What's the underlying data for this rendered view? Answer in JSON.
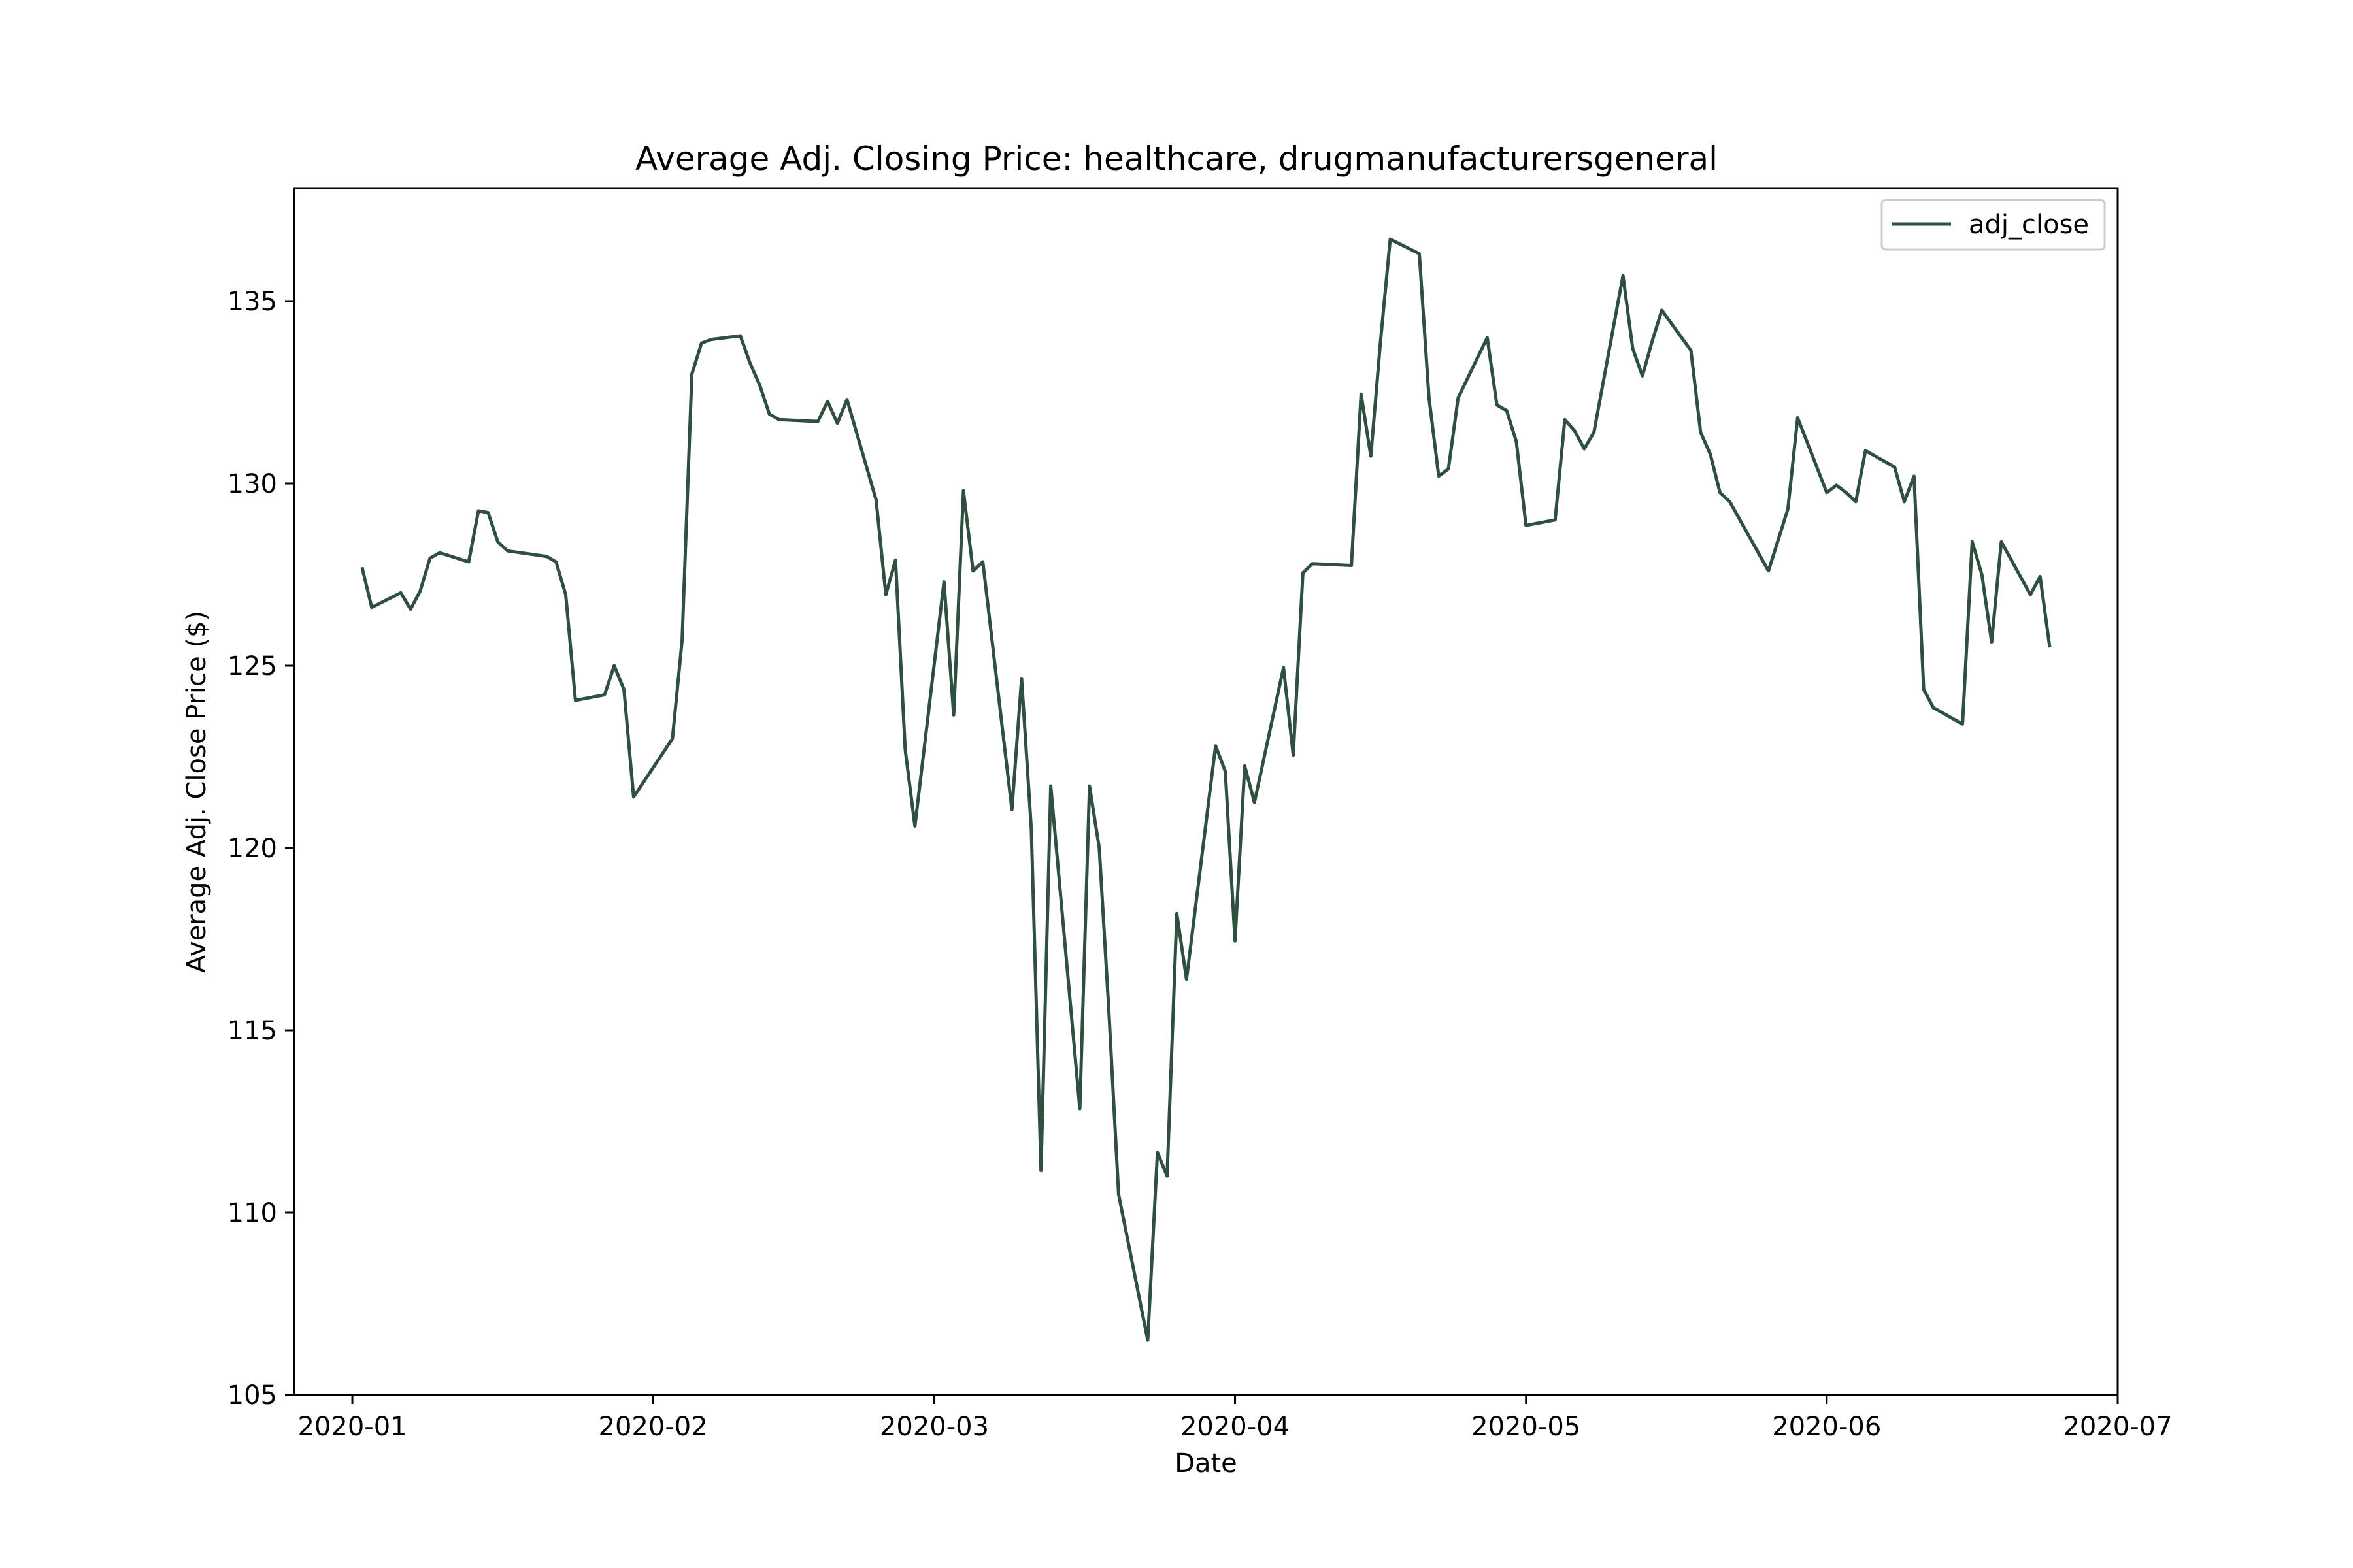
{
  "chart_data": {
    "type": "line",
    "title": "Average Adj. Closing Price: healthcare, drugmanufacturersgeneral",
    "xlabel": "Date",
    "ylabel": "Average Adj. Close Price ($)",
    "xlim": [
      "2019-12-26",
      "2020-07-01"
    ],
    "ylim": [
      105,
      138.1
    ],
    "x_ticks": [
      "2020-01-01",
      "2020-02-01",
      "2020-03-01",
      "2020-04-01",
      "2020-05-01",
      "2020-06-01",
      "2020-07-01"
    ],
    "x_tick_labels": [
      "2020-01",
      "2020-02",
      "2020-03",
      "2020-04",
      "2020-05",
      "2020-06",
      "2020-07"
    ],
    "y_ticks": [
      105,
      110,
      115,
      120,
      125,
      130,
      135
    ],
    "y_tick_labels": [
      "105",
      "110",
      "115",
      "120",
      "125",
      "130",
      "135"
    ],
    "grid": false,
    "legend": {
      "position": "top-right",
      "entries": [
        "adj_close"
      ]
    },
    "series": [
      {
        "name": "adj_close",
        "color": "#2f4f3f",
        "points": [
          [
            "2020-01-02",
            127.7
          ],
          [
            "2020-01-03",
            126.6
          ],
          [
            "2020-01-06",
            127.0
          ],
          [
            "2020-01-07",
            126.55
          ],
          [
            "2020-01-08",
            127.05
          ],
          [
            "2020-01-09",
            127.95
          ],
          [
            "2020-01-10",
            128.1
          ],
          [
            "2020-01-13",
            127.85
          ],
          [
            "2020-01-14",
            129.25
          ],
          [
            "2020-01-15",
            129.2
          ],
          [
            "2020-01-16",
            128.4
          ],
          [
            "2020-01-17",
            128.15
          ],
          [
            "2020-01-21",
            128.0
          ],
          [
            "2020-01-22",
            127.85
          ],
          [
            "2020-01-23",
            126.95
          ],
          [
            "2020-01-24",
            124.05
          ],
          [
            "2020-01-27",
            124.2
          ],
          [
            "2020-01-28",
            125.0
          ],
          [
            "2020-01-29",
            124.35
          ],
          [
            "2020-01-30",
            121.4
          ],
          [
            "2020-02-03",
            123.0
          ],
          [
            "2020-02-04",
            125.7
          ],
          [
            "2020-02-05",
            133.0
          ],
          [
            "2020-02-06",
            133.85
          ],
          [
            "2020-02-07",
            133.95
          ],
          [
            "2020-02-10",
            134.05
          ],
          [
            "2020-02-11",
            133.3
          ],
          [
            "2020-02-12",
            132.7
          ],
          [
            "2020-02-13",
            131.9
          ],
          [
            "2020-02-14",
            131.75
          ],
          [
            "2020-02-18",
            131.7
          ],
          [
            "2020-02-19",
            132.25
          ],
          [
            "2020-02-20",
            131.65
          ],
          [
            "2020-02-21",
            132.3
          ],
          [
            "2020-02-24",
            129.55
          ],
          [
            "2020-02-25",
            126.95
          ],
          [
            "2020-02-26",
            127.9
          ],
          [
            "2020-02-27",
            122.7
          ],
          [
            "2020-02-28",
            120.6
          ],
          [
            "2020-03-02",
            127.3
          ],
          [
            "2020-03-03",
            123.65
          ],
          [
            "2020-03-04",
            129.8
          ],
          [
            "2020-03-05",
            127.6
          ],
          [
            "2020-03-06",
            127.85
          ],
          [
            "2020-03-09",
            121.05
          ],
          [
            "2020-03-10",
            124.65
          ],
          [
            "2020-03-11",
            120.5
          ],
          [
            "2020-03-12",
            111.15
          ],
          [
            "2020-03-13",
            121.7
          ],
          [
            "2020-03-16",
            112.85
          ],
          [
            "2020-03-17",
            121.7
          ],
          [
            "2020-03-18",
            120.0
          ],
          [
            "2020-03-19",
            115.5
          ],
          [
            "2020-03-20",
            110.5
          ],
          [
            "2020-03-23",
            106.5
          ],
          [
            "2020-03-24",
            111.65
          ],
          [
            "2020-03-25",
            111.0
          ],
          [
            "2020-03-26",
            118.2
          ],
          [
            "2020-03-27",
            116.4
          ],
          [
            "2020-03-30",
            122.8
          ],
          [
            "2020-03-31",
            122.1
          ],
          [
            "2020-04-01",
            117.45
          ],
          [
            "2020-04-02",
            122.25
          ],
          [
            "2020-04-03",
            121.25
          ],
          [
            "2020-04-06",
            124.95
          ],
          [
            "2020-04-07",
            122.55
          ],
          [
            "2020-04-08",
            127.55
          ],
          [
            "2020-04-09",
            127.8
          ],
          [
            "2020-04-13",
            127.75
          ],
          [
            "2020-04-14",
            132.45
          ],
          [
            "2020-04-15",
            130.75
          ],
          [
            "2020-04-16",
            133.9
          ],
          [
            "2020-04-17",
            136.7
          ],
          [
            "2020-04-20",
            136.3
          ],
          [
            "2020-04-21",
            132.35
          ],
          [
            "2020-04-22",
            130.2
          ],
          [
            "2020-04-23",
            130.4
          ],
          [
            "2020-04-24",
            132.35
          ],
          [
            "2020-04-27",
            134.0
          ],
          [
            "2020-04-28",
            132.15
          ],
          [
            "2020-04-29",
            132.0
          ],
          [
            "2020-04-30",
            131.15
          ],
          [
            "2020-05-01",
            128.85
          ],
          [
            "2020-05-04",
            129.0
          ],
          [
            "2020-05-05",
            131.75
          ],
          [
            "2020-05-06",
            131.45
          ],
          [
            "2020-05-07",
            130.95
          ],
          [
            "2020-05-08",
            131.4
          ],
          [
            "2020-05-11",
            135.7
          ],
          [
            "2020-05-12",
            133.7
          ],
          [
            "2020-05-13",
            132.95
          ],
          [
            "2020-05-14",
            133.9
          ],
          [
            "2020-05-15",
            134.75
          ],
          [
            "2020-05-18",
            133.65
          ],
          [
            "2020-05-19",
            131.4
          ],
          [
            "2020-05-20",
            130.8
          ],
          [
            "2020-05-21",
            129.75
          ],
          [
            "2020-05-22",
            129.5
          ],
          [
            "2020-05-26",
            127.6
          ],
          [
            "2020-05-28",
            129.3
          ],
          [
            "2020-05-29",
            131.8
          ],
          [
            "2020-06-01",
            129.75
          ],
          [
            "2020-06-02",
            129.95
          ],
          [
            "2020-06-03",
            129.75
          ],
          [
            "2020-06-04",
            129.5
          ],
          [
            "2020-06-05",
            130.9
          ],
          [
            "2020-06-08",
            130.45
          ],
          [
            "2020-06-09",
            129.5
          ],
          [
            "2020-06-10",
            130.2
          ],
          [
            "2020-06-11",
            124.35
          ],
          [
            "2020-06-12",
            123.85
          ],
          [
            "2020-06-15",
            123.4
          ],
          [
            "2020-06-16",
            128.4
          ],
          [
            "2020-06-17",
            127.5
          ],
          [
            "2020-06-18",
            125.65
          ],
          [
            "2020-06-19",
            128.4
          ],
          [
            "2020-06-22",
            126.95
          ],
          [
            "2020-06-23",
            127.45
          ],
          [
            "2020-06-24",
            125.5
          ]
        ]
      }
    ]
  }
}
